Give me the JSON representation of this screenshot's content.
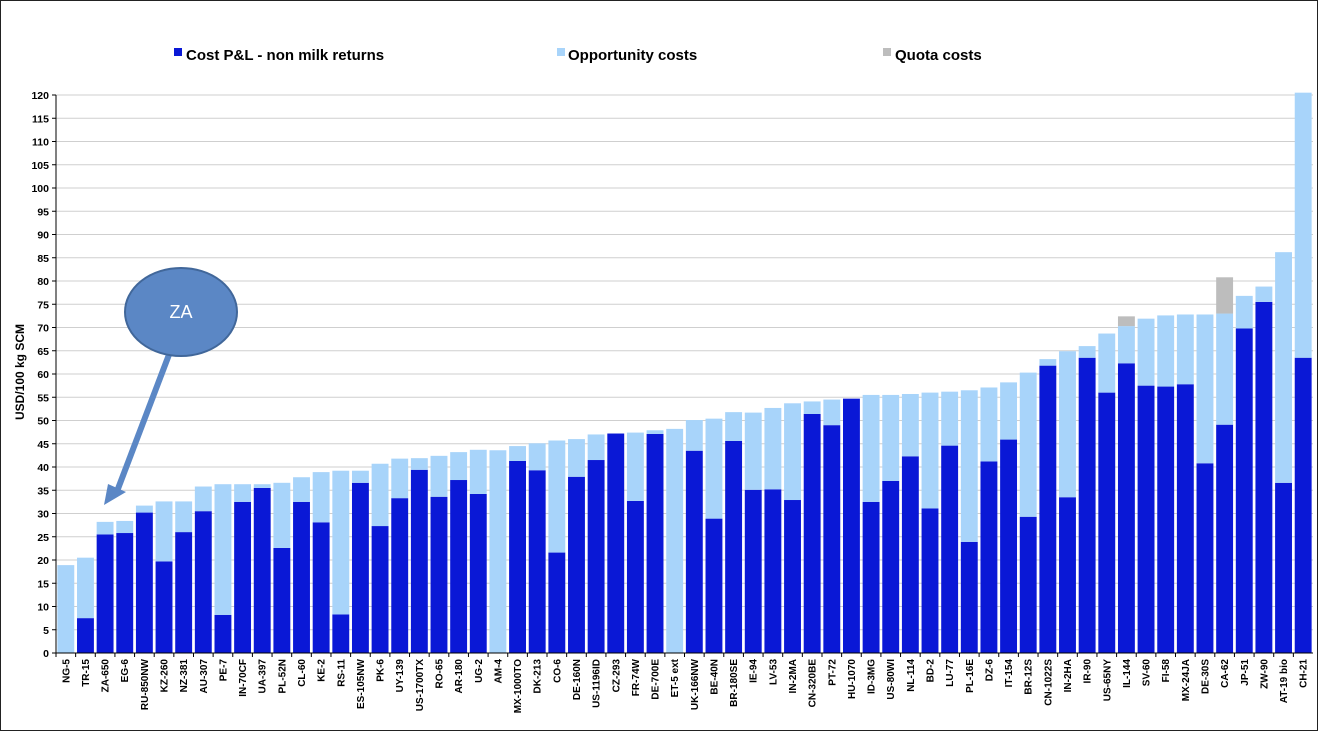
{
  "chart_data": {
    "type": "bar",
    "stacked": true,
    "title": "",
    "xlabel": "",
    "ylabel": "USD/100 kg SCM",
    "ylim": [
      0,
      120
    ],
    "ytick_step": 5,
    "grid": true,
    "legend_position": "top",
    "categories": [
      "NG-5",
      "TR-15",
      "ZA-650",
      "EG-6",
      "RU-850NW",
      "KZ-260",
      "NZ-381",
      "AU-307",
      "PE-7",
      "IN-70CF",
      "UA-397",
      "PL-52N",
      "CL-60",
      "KE-2",
      "RS-11",
      "ES-105NW",
      "PK-6",
      "UY-139",
      "US-1700TX",
      "RO-65",
      "AR-180",
      "UG-2",
      "AM-4",
      "MX-1000TO",
      "DK-213",
      "CO-6",
      "DE-160N",
      "US-1196ID",
      "CZ-293",
      "FR-74W",
      "DE-700E",
      "ET-5 ext",
      "UK-166NW",
      "BE-40N",
      "BR-180SE",
      "IE-94",
      "LV-53",
      "IN-2MA",
      "CN-320BE",
      "PT-72",
      "HU-1070",
      "ID-3MG",
      "US-80WI",
      "NL-114",
      "BD-2",
      "LU-77",
      "PL-16E",
      "DZ-6",
      "IT-154",
      "BR-12S",
      "CN-1022S",
      "IN-2HA",
      "IR-90",
      "US-65NY",
      "IL-144",
      "SV-60",
      "FI-58",
      "MX-24JA",
      "DE-30S",
      "CA-62",
      "JP-51",
      "ZW-90",
      "AT-19 bio",
      "CH-21"
    ],
    "series": [
      {
        "name": "Cost P&L - non milk returns",
        "color": "#0a18d6",
        "values": [
          0,
          7.5,
          25.5,
          25.8,
          30.2,
          19.7,
          26,
          30.5,
          8.2,
          32.5,
          35.5,
          22.6,
          32.5,
          28.1,
          8.3,
          36.6,
          27.3,
          33.3,
          39.4,
          33.6,
          37.2,
          34.2,
          0,
          41.3,
          39.3,
          21.6,
          37.9,
          41.5,
          47.2,
          32.7,
          47.1,
          0,
          43.5,
          28.9,
          45.6,
          35.1,
          35.2,
          32.9,
          51.4,
          49,
          54.7,
          32.5,
          37,
          42.3,
          31.1,
          44.6,
          23.9,
          41.2,
          45.9,
          29.3,
          61.8,
          33.5,
          63.5,
          56,
          62.3,
          57.5,
          57.3,
          57.8,
          40.8,
          49.1,
          69.8,
          75.5,
          36.6,
          63.5
        ]
      },
      {
        "name": "Opportunity costs",
        "color": "#a8d4fa",
        "values": [
          18.9,
          13,
          2.7,
          2.6,
          1.5,
          12.9,
          6.6,
          5.3,
          28.1,
          3.8,
          0.8,
          14,
          5.3,
          10.8,
          30.9,
          2.6,
          13.4,
          8.5,
          2.5,
          8.8,
          6,
          9.5,
          43.6,
          3.2,
          5.8,
          24.1,
          8.1,
          5.5,
          0,
          14.7,
          0.8,
          48.2,
          6.6,
          21.5,
          6.2,
          16.6,
          17.5,
          20.8,
          2.7,
          5.5,
          0,
          23,
          18.5,
          13.4,
          24.9,
          11.6,
          32.6,
          15.9,
          12.3,
          31,
          1.4,
          31.4,
          2.5,
          12.7,
          8,
          14.4,
          15.3,
          15,
          32,
          23.9,
          7,
          3.3,
          49.6,
          57
        ]
      },
      {
        "name": "Quota costs",
        "color": "#bdbdbd",
        "values": [
          0,
          0,
          0,
          0,
          0,
          0,
          0,
          0,
          0,
          0,
          0,
          0,
          0,
          0,
          0,
          0,
          0,
          0,
          0,
          0,
          0,
          0,
          0,
          0,
          0,
          0,
          0,
          0,
          0,
          0,
          0,
          0,
          0,
          0,
          0,
          0,
          0,
          0,
          0,
          0,
          0,
          0,
          0,
          0,
          0,
          0,
          0,
          0,
          0,
          0,
          0,
          0,
          0,
          0,
          2.1,
          0,
          0,
          0,
          0,
          7.8,
          0,
          0,
          0,
          0
        ]
      }
    ]
  },
  "annotation": {
    "label": "ZA",
    "target_category": "ZA-650",
    "fill": "#5b87c5",
    "stroke": "#41679a"
  }
}
